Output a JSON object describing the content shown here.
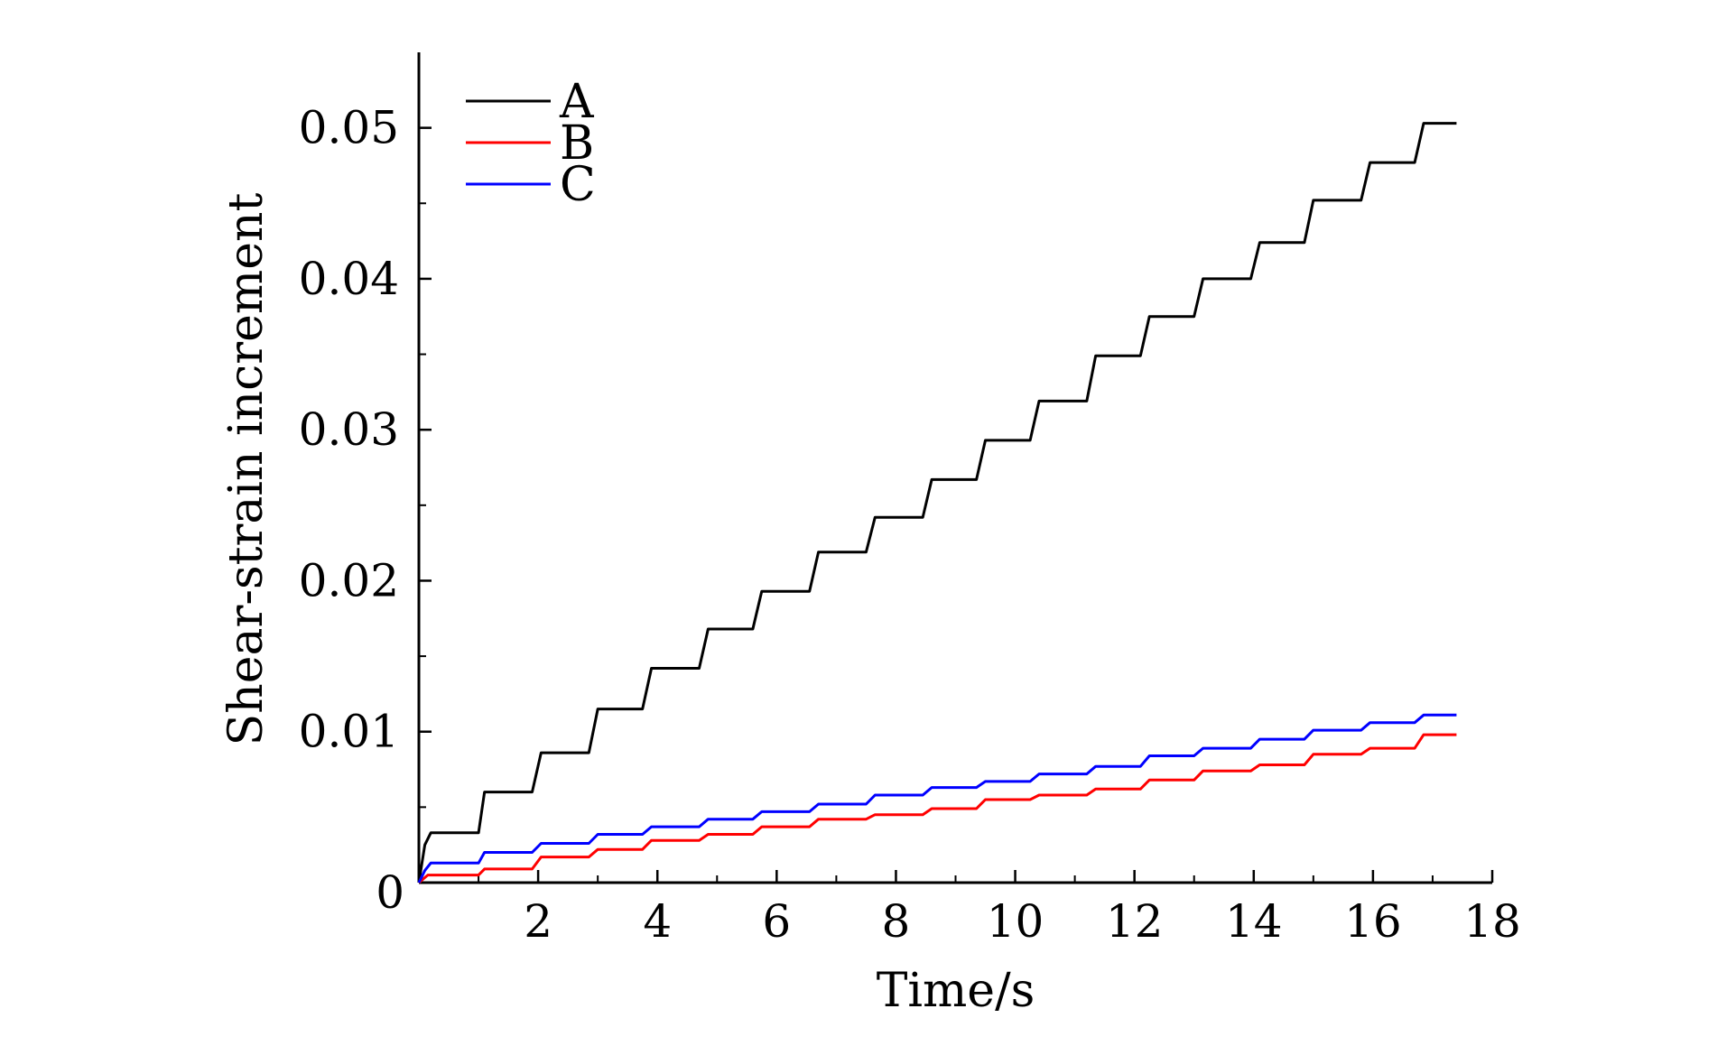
{
  "chart_data": {
    "type": "line",
    "title": "",
    "xlabel": "Time/s",
    "ylabel": "Shear-strain increment",
    "xlim": [
      0,
      18
    ],
    "ylim": [
      0,
      0.055
    ],
    "x_ticks": [
      2,
      4,
      6,
      8,
      10,
      12,
      14,
      16,
      18
    ],
    "x_tick_labels": [
      "2",
      "4",
      "6",
      "8",
      "10",
      "12",
      "14",
      "16",
      "18"
    ],
    "y_ticks": [
      0,
      0.01,
      0.02,
      0.03,
      0.04,
      0.05
    ],
    "y_tick_labels": [
      "0",
      "0.01",
      "0.02",
      "0.03",
      "0.04",
      "0.05"
    ],
    "grid": false,
    "legend_position": "top-left",
    "series": [
      {
        "name": "A",
        "color": "#000000",
        "x": [
          0,
          0.1,
          0.2,
          1.0,
          1.1,
          1.9,
          2.05,
          2.85,
          3.0,
          3.75,
          3.9,
          4.7,
          4.85,
          5.6,
          5.75,
          6.55,
          6.7,
          7.5,
          7.65,
          8.45,
          8.6,
          9.35,
          9.5,
          10.25,
          10.4,
          11.2,
          11.35,
          12.1,
          12.25,
          13.0,
          13.15,
          13.95,
          14.1,
          14.85,
          15.0,
          15.8,
          15.95,
          16.7,
          16.85,
          17.4
        ],
        "y": [
          0,
          0.0025,
          0.0033,
          0.0033,
          0.006,
          0.006,
          0.0086,
          0.0086,
          0.0115,
          0.0115,
          0.0142,
          0.0142,
          0.0168,
          0.0168,
          0.0193,
          0.0193,
          0.0219,
          0.0219,
          0.0242,
          0.0242,
          0.0267,
          0.0267,
          0.0293,
          0.0293,
          0.0319,
          0.0319,
          0.0349,
          0.0349,
          0.0375,
          0.0375,
          0.04,
          0.04,
          0.0424,
          0.0424,
          0.0452,
          0.0452,
          0.0477,
          0.0477,
          0.0503,
          0.0503
        ]
      },
      {
        "name": "B",
        "color": "#ff0000",
        "x": [
          0,
          0.15,
          1.0,
          1.1,
          1.9,
          2.05,
          2.85,
          3.0,
          3.75,
          3.9,
          4.7,
          4.85,
          5.6,
          5.75,
          6.55,
          6.7,
          7.5,
          7.65,
          8.45,
          8.6,
          9.35,
          9.5,
          10.25,
          10.4,
          11.2,
          11.35,
          12.1,
          12.25,
          13.0,
          13.15,
          13.95,
          14.1,
          14.85,
          15.0,
          15.8,
          15.95,
          16.7,
          16.85,
          17.4
        ],
        "y": [
          0,
          0.0005,
          0.0005,
          0.0009,
          0.0009,
          0.0017,
          0.0017,
          0.0022,
          0.0022,
          0.0028,
          0.0028,
          0.0032,
          0.0032,
          0.0037,
          0.0037,
          0.0042,
          0.0042,
          0.0045,
          0.0045,
          0.0049,
          0.0049,
          0.0055,
          0.0055,
          0.0058,
          0.0058,
          0.0062,
          0.0062,
          0.0068,
          0.0068,
          0.0074,
          0.0074,
          0.0078,
          0.0078,
          0.0085,
          0.0085,
          0.0089,
          0.0089,
          0.0098,
          0.0098
        ]
      },
      {
        "name": "C",
        "color": "#0000ff",
        "x": [
          0,
          0.1,
          0.2,
          1.0,
          1.1,
          1.9,
          2.05,
          2.85,
          3.0,
          3.75,
          3.9,
          4.7,
          4.85,
          5.6,
          5.75,
          6.55,
          6.7,
          7.5,
          7.65,
          8.45,
          8.6,
          9.35,
          9.5,
          10.25,
          10.4,
          11.2,
          11.35,
          12.1,
          12.25,
          13.0,
          13.15,
          13.95,
          14.1,
          14.85,
          15.0,
          15.8,
          15.95,
          16.7,
          16.85,
          17.4
        ],
        "y": [
          0,
          0.0008,
          0.0013,
          0.0013,
          0.002,
          0.002,
          0.0026,
          0.0026,
          0.0032,
          0.0032,
          0.0037,
          0.0037,
          0.0042,
          0.0042,
          0.0047,
          0.0047,
          0.0052,
          0.0052,
          0.0058,
          0.0058,
          0.0063,
          0.0063,
          0.0067,
          0.0067,
          0.0072,
          0.0072,
          0.0077,
          0.0077,
          0.0084,
          0.0084,
          0.0089,
          0.0089,
          0.0095,
          0.0095,
          0.0101,
          0.0101,
          0.0106,
          0.0106,
          0.0111,
          0.0111
        ]
      }
    ]
  }
}
